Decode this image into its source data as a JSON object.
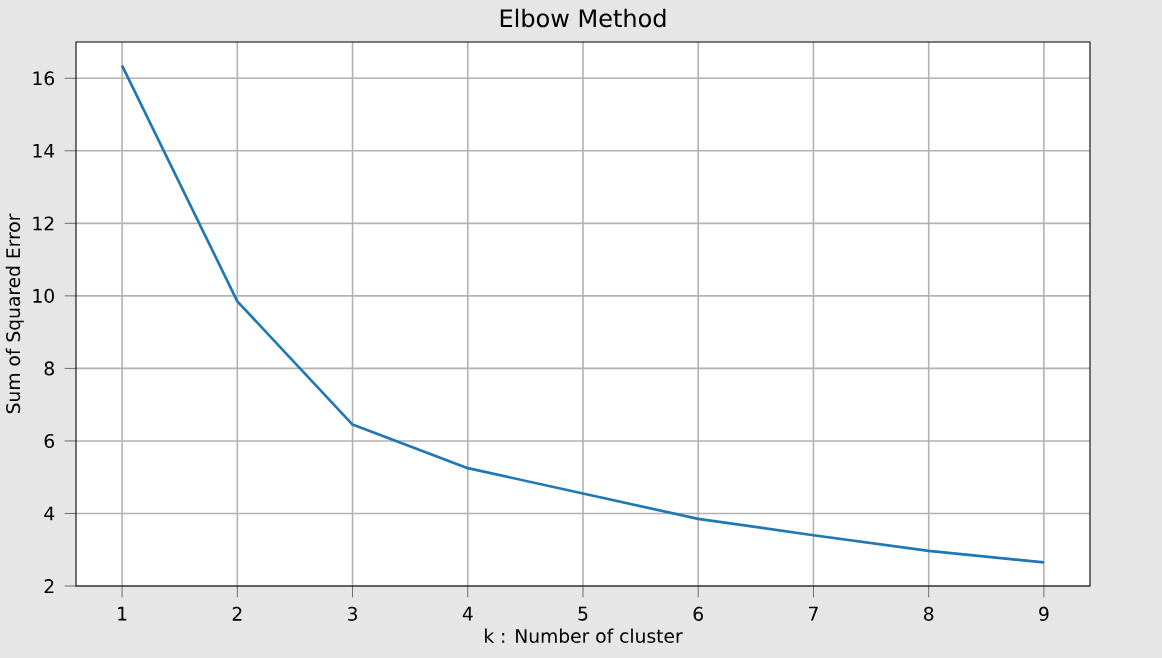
{
  "chart_data": {
    "type": "line",
    "title": "Elbow Method",
    "xlabel": "k : Number of cluster",
    "ylabel": "Sum of Squared Error",
    "x": [
      1,
      2,
      3,
      4,
      5,
      6,
      7,
      8,
      9
    ],
    "values": [
      16.35,
      9.85,
      6.45,
      5.25,
      4.55,
      3.85,
      3.4,
      2.97,
      2.65
    ],
    "color": "#1f77b4",
    "xlim": [
      0.6,
      9.4
    ],
    "ylim": [
      2,
      17
    ],
    "xticks": [
      1,
      2,
      3,
      4,
      5,
      6,
      7,
      8,
      9
    ],
    "yticks": [
      2,
      4,
      6,
      8,
      10,
      12,
      14,
      16
    ],
    "grid": true,
    "marker": "none",
    "line_style": "solid"
  }
}
